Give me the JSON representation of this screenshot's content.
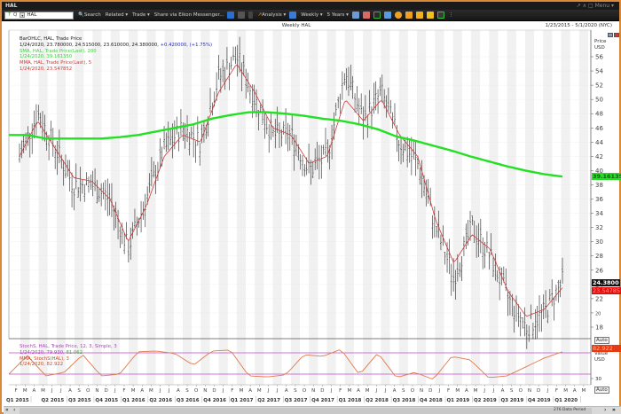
{
  "window": {
    "title": "HAL",
    "controls": [
      "pin-icon",
      "caret-icon",
      "restore-icon"
    ],
    "menu_label": "Menu"
  },
  "toolbar": {
    "ric_value": "HAL",
    "search_label": "Search",
    "related_label": "Related",
    "trade_label": "Trade",
    "share_label": "Share via Eikon Messenger...",
    "analysis_label": "Analysis",
    "interval_label": "Weekly",
    "range_label": "5 Years"
  },
  "chart": {
    "title": "Weekly HAL",
    "date_range": "1/23/2015 - 5/1/2020 (NYC)",
    "price_axis_title": [
      "Price",
      "USD"
    ],
    "stoch_axis_title": [
      "Value",
      "USD"
    ],
    "auto_label": "Auto",
    "legend": {
      "line1": "BarOHLC, HAL, Trade Price",
      "line2_values": "1/24/2020, 23.780000, 24.515000, 23.610000, 24.380000,",
      "line2_change": "+0.420000, (+1.75%)",
      "sma_name": "SMA, HAL, Trade Price(Last), 200",
      "sma_value": "1/24/2020, 39.161350",
      "mma_name": "MMA, HAL, Trade Price(Last), 5",
      "mma_value": "1/24/2020, 23.547852"
    },
    "stoch_legend": {
      "name": "StochS, HAL, Trade Price, 12, 3, Simple, 3",
      "values_a": "1/24/2020, 79.930,",
      "values_b": "81.062",
      "mma_name": "MMA, StochS(HAL), 3",
      "mma_value": "1/24/2020, 82.922"
    },
    "tags": {
      "sma": "39.16135",
      "last": "24.3800",
      "mma": "23.54785",
      "stoch": "82.922"
    },
    "colors": {
      "sma": "#22e022",
      "mma": "#d03a3a",
      "bars": "#222222",
      "stoch_line": "#e07a4a",
      "stoch_band": "#c048c8",
      "change": "#2a2ac8"
    },
    "data_period_label": "276 Data Period"
  },
  "chart_data": [
    {
      "type": "line",
      "title": "Weekly HAL",
      "ylabel": "Price USD",
      "ylim": [
        17,
        59
      ],
      "yticks": [
        18,
        20,
        22,
        24,
        26,
        28,
        30,
        32,
        34,
        36,
        38,
        40,
        42,
        44,
        46,
        48,
        50,
        52,
        54,
        56
      ],
      "x_month_ticks": [
        "F",
        "M",
        "A",
        "M",
        "J",
        "J",
        "A",
        "S",
        "O",
        "N",
        "D",
        "J",
        "F",
        "M",
        "A",
        "M",
        "J",
        "J",
        "A",
        "S",
        "O",
        "N",
        "D",
        "J",
        "F",
        "M",
        "A",
        "M",
        "J",
        "J",
        "A",
        "S",
        "O",
        "N",
        "D",
        "J",
        "F",
        "M",
        "A",
        "M",
        "J",
        "J",
        "A",
        "S",
        "O",
        "N",
        "D",
        "J",
        "F",
        "M",
        "A",
        "M",
        "J",
        "J",
        "A",
        "S",
        "O",
        "N",
        "D",
        "J",
        "F",
        "M",
        "A",
        "M"
      ],
      "x_quarter_ticks": [
        "Q1 2015",
        "Q2 2015",
        "Q3 2015",
        "Q4 2015",
        "Q1 2016",
        "Q2 2016",
        "Q3 2016",
        "Q4 2016",
        "Q1 2017",
        "Q2 2017",
        "Q3 2017",
        "Q4 2017",
        "Q1 2018",
        "Q2 2018",
        "Q3 2018",
        "Q4 2018",
        "Q1 2019",
        "Q2 2019",
        "Q3 2019",
        "Q4 2019",
        "Q1 2020"
      ],
      "x": [
        "2015-02",
        "2015-04",
        "2015-06",
        "2015-08",
        "2015-10",
        "2015-12",
        "2016-02",
        "2016-04",
        "2016-06",
        "2016-08",
        "2016-10",
        "2016-12",
        "2017-01",
        "2017-03",
        "2017-05",
        "2017-07",
        "2017-09",
        "2017-11",
        "2018-01",
        "2018-03",
        "2018-05",
        "2018-07",
        "2018-09",
        "2018-11",
        "2019-01",
        "2019-03",
        "2019-05",
        "2019-07",
        "2019-09",
        "2019-11",
        "2020-01"
      ],
      "series": [
        {
          "name": "HAL Weekly Close",
          "values": [
            42,
            48,
            43,
            38,
            38,
            36,
            29,
            36,
            43,
            46,
            44,
            53,
            56,
            50,
            45,
            45,
            40,
            42,
            54,
            47,
            51,
            44,
            41,
            32,
            25,
            32,
            28,
            22,
            18,
            20,
            24.38
          ]
        },
        {
          "name": "SMA 200",
          "values": [
            45,
            45,
            44.5,
            44.5,
            44.5,
            44.5,
            44.7,
            45,
            45.5,
            46,
            46.5,
            47.3,
            47.8,
            48.2,
            48.2,
            48,
            47.7,
            47.3,
            47,
            46.5,
            45.8,
            44.8,
            44.2,
            43.5,
            42.8,
            42,
            41.3,
            40.6,
            40,
            39.5,
            39.16
          ]
        },
        {
          "name": "MMA 5",
          "values": [
            42,
            47,
            43,
            39,
            38.5,
            36,
            30,
            35,
            42,
            45,
            44,
            51,
            55,
            51,
            46,
            45,
            41,
            42,
            50,
            47,
            50,
            45,
            42,
            33,
            27,
            31,
            29,
            23,
            19.5,
            20.5,
            23.55
          ]
        }
      ],
      "last_values": {
        "close": 24.38,
        "sma200": 39.16135,
        "mma5": 23.547852
      }
    },
    {
      "type": "line",
      "title": "StochS, HAL, Trade Price, 12, 3, Simple, 3",
      "ylabel": "Value USD",
      "ylim": [
        0,
        100
      ],
      "bands": [
        80,
        20
      ],
      "yticks": [
        30
      ],
      "series": [
        {
          "name": "MMA StochS 3",
          "values": [
            20,
            72,
            15,
            25,
            75,
            15,
            20,
            83,
            85,
            78,
            45,
            85,
            88,
            15,
            12,
            18,
            75,
            70,
            90,
            18,
            80,
            10,
            25,
            5,
            70,
            60,
            10,
            15,
            40,
            65,
            82.922
          ]
        }
      ],
      "last_values": {
        "stoch": 79.93,
        "signal": 81.062,
        "mma": 82.922
      }
    }
  ]
}
